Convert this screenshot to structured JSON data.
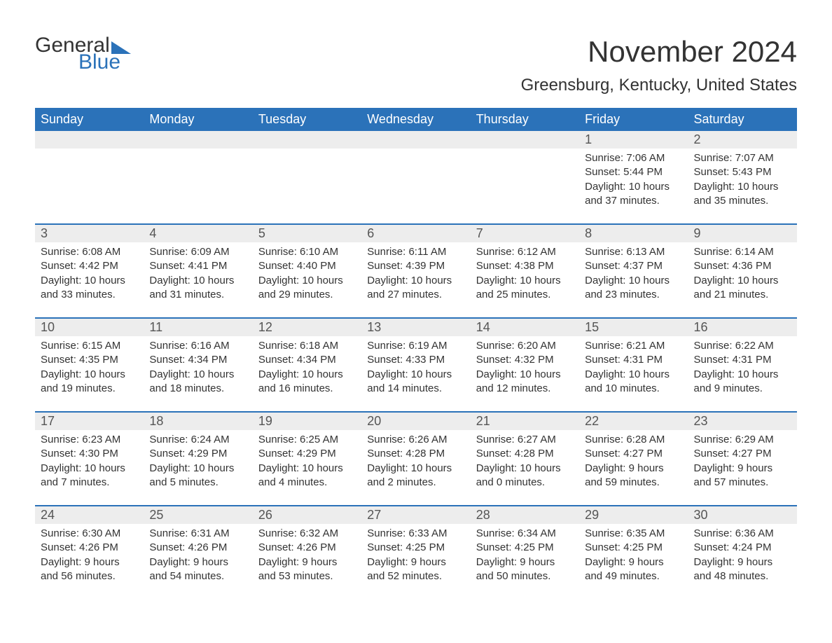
{
  "logo": {
    "text1": "General",
    "text2": "Blue",
    "accent_color": "#2b72b9"
  },
  "title": "November 2024",
  "location": "Greensburg, Kentucky, United States",
  "colors": {
    "header_bg": "#2b72b9",
    "header_text": "#ffffff",
    "row_divider": "#2b72b9",
    "daynum_bg": "#ededed",
    "text": "#333333",
    "background": "#ffffff"
  },
  "fonts": {
    "title_size": 42,
    "location_size": 24,
    "weekday_size": 18,
    "daynum_size": 18,
    "body_size": 15
  },
  "weekdays": [
    "Sunday",
    "Monday",
    "Tuesday",
    "Wednesday",
    "Thursday",
    "Friday",
    "Saturday"
  ],
  "labels": {
    "sunrise": "Sunrise:",
    "sunset": "Sunset:",
    "daylight": "Daylight:"
  },
  "weeks": [
    [
      null,
      null,
      null,
      null,
      null,
      {
        "n": "1",
        "sunrise": "7:06 AM",
        "sunset": "5:44 PM",
        "daylight": "10 hours and 37 minutes."
      },
      {
        "n": "2",
        "sunrise": "7:07 AM",
        "sunset": "5:43 PM",
        "daylight": "10 hours and 35 minutes."
      }
    ],
    [
      {
        "n": "3",
        "sunrise": "6:08 AM",
        "sunset": "4:42 PM",
        "daylight": "10 hours and 33 minutes."
      },
      {
        "n": "4",
        "sunrise": "6:09 AM",
        "sunset": "4:41 PM",
        "daylight": "10 hours and 31 minutes."
      },
      {
        "n": "5",
        "sunrise": "6:10 AM",
        "sunset": "4:40 PM",
        "daylight": "10 hours and 29 minutes."
      },
      {
        "n": "6",
        "sunrise": "6:11 AM",
        "sunset": "4:39 PM",
        "daylight": "10 hours and 27 minutes."
      },
      {
        "n": "7",
        "sunrise": "6:12 AM",
        "sunset": "4:38 PM",
        "daylight": "10 hours and 25 minutes."
      },
      {
        "n": "8",
        "sunrise": "6:13 AM",
        "sunset": "4:37 PM",
        "daylight": "10 hours and 23 minutes."
      },
      {
        "n": "9",
        "sunrise": "6:14 AM",
        "sunset": "4:36 PM",
        "daylight": "10 hours and 21 minutes."
      }
    ],
    [
      {
        "n": "10",
        "sunrise": "6:15 AM",
        "sunset": "4:35 PM",
        "daylight": "10 hours and 19 minutes."
      },
      {
        "n": "11",
        "sunrise": "6:16 AM",
        "sunset": "4:34 PM",
        "daylight": "10 hours and 18 minutes."
      },
      {
        "n": "12",
        "sunrise": "6:18 AM",
        "sunset": "4:34 PM",
        "daylight": "10 hours and 16 minutes."
      },
      {
        "n": "13",
        "sunrise": "6:19 AM",
        "sunset": "4:33 PM",
        "daylight": "10 hours and 14 minutes."
      },
      {
        "n": "14",
        "sunrise": "6:20 AM",
        "sunset": "4:32 PM",
        "daylight": "10 hours and 12 minutes."
      },
      {
        "n": "15",
        "sunrise": "6:21 AM",
        "sunset": "4:31 PM",
        "daylight": "10 hours and 10 minutes."
      },
      {
        "n": "16",
        "sunrise": "6:22 AM",
        "sunset": "4:31 PM",
        "daylight": "10 hours and 9 minutes."
      }
    ],
    [
      {
        "n": "17",
        "sunrise": "6:23 AM",
        "sunset": "4:30 PM",
        "daylight": "10 hours and 7 minutes."
      },
      {
        "n": "18",
        "sunrise": "6:24 AM",
        "sunset": "4:29 PM",
        "daylight": "10 hours and 5 minutes."
      },
      {
        "n": "19",
        "sunrise": "6:25 AM",
        "sunset": "4:29 PM",
        "daylight": "10 hours and 4 minutes."
      },
      {
        "n": "20",
        "sunrise": "6:26 AM",
        "sunset": "4:28 PM",
        "daylight": "10 hours and 2 minutes."
      },
      {
        "n": "21",
        "sunrise": "6:27 AM",
        "sunset": "4:28 PM",
        "daylight": "10 hours and 0 minutes."
      },
      {
        "n": "22",
        "sunrise": "6:28 AM",
        "sunset": "4:27 PM",
        "daylight": "9 hours and 59 minutes."
      },
      {
        "n": "23",
        "sunrise": "6:29 AM",
        "sunset": "4:27 PM",
        "daylight": "9 hours and 57 minutes."
      }
    ],
    [
      {
        "n": "24",
        "sunrise": "6:30 AM",
        "sunset": "4:26 PM",
        "daylight": "9 hours and 56 minutes."
      },
      {
        "n": "25",
        "sunrise": "6:31 AM",
        "sunset": "4:26 PM",
        "daylight": "9 hours and 54 minutes."
      },
      {
        "n": "26",
        "sunrise": "6:32 AM",
        "sunset": "4:26 PM",
        "daylight": "9 hours and 53 minutes."
      },
      {
        "n": "27",
        "sunrise": "6:33 AM",
        "sunset": "4:25 PM",
        "daylight": "9 hours and 52 minutes."
      },
      {
        "n": "28",
        "sunrise": "6:34 AM",
        "sunset": "4:25 PM",
        "daylight": "9 hours and 50 minutes."
      },
      {
        "n": "29",
        "sunrise": "6:35 AM",
        "sunset": "4:25 PM",
        "daylight": "9 hours and 49 minutes."
      },
      {
        "n": "30",
        "sunrise": "6:36 AM",
        "sunset": "4:24 PM",
        "daylight": "9 hours and 48 minutes."
      }
    ]
  ]
}
